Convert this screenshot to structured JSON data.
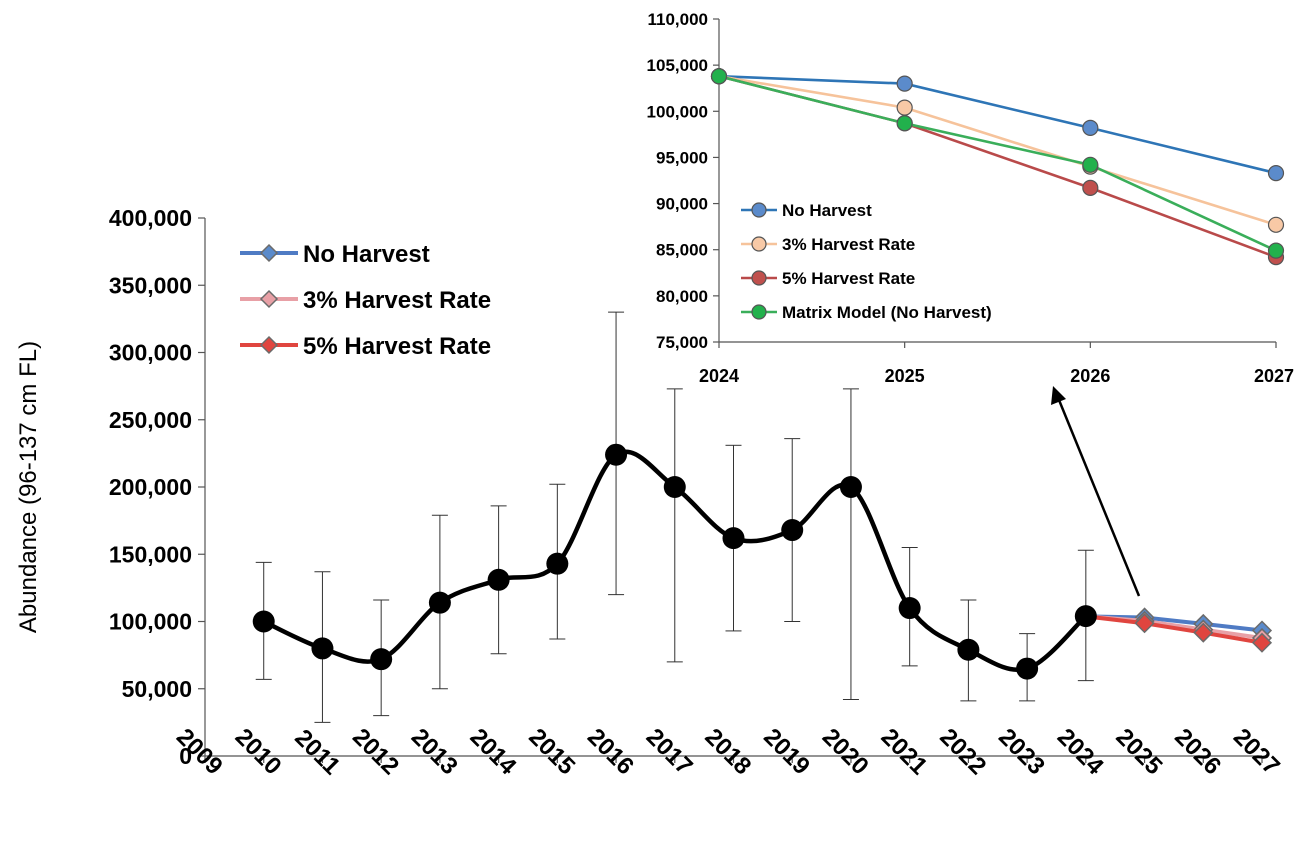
{
  "chart_data": [
    {
      "type": "line",
      "title": "",
      "xlabel": "",
      "ylabel": "Abundance (96-137 cm FL)",
      "ylim": [
        0,
        400000
      ],
      "yticks": [
        0,
        50000,
        100000,
        150000,
        200000,
        250000,
        300000,
        350000,
        400000
      ],
      "ytick_labels": [
        "0",
        "50,000",
        "100,000",
        "150,000",
        "200,000",
        "250,000",
        "300,000",
        "350,000",
        "400,000"
      ],
      "xticks": [
        2009,
        2010,
        2011,
        2012,
        2013,
        2014,
        2015,
        2016,
        2017,
        2018,
        2019,
        2020,
        2021,
        2022,
        2023,
        2024,
        2025,
        2026,
        2027
      ],
      "xtick_labels": [
        "2009",
        "2010",
        "2011",
        "2012",
        "2013",
        "2014",
        "2015",
        "2016",
        "2017",
        "2018",
        "2019",
        "2020",
        "2021",
        "2022",
        "2023",
        "2024",
        "2025",
        "2026",
        "2027"
      ],
      "grid": false,
      "legend_position": "top-left",
      "observed": {
        "x": [
          2010,
          2011,
          2012,
          2013,
          2014,
          2015,
          2016,
          2017,
          2018,
          2019,
          2020,
          2021,
          2022,
          2023,
          2024
        ],
        "y": [
          100000,
          80000,
          72000,
          114000,
          131000,
          143000,
          224000,
          200000,
          162000,
          168000,
          200000,
          110000,
          79000,
          65000,
          104000
        ],
        "err_low": [
          57000,
          25000,
          30000,
          50000,
          76000,
          87000,
          120000,
          70000,
          93000,
          100000,
          42000,
          67000,
          41000,
          41000,
          56000
        ],
        "err_high": [
          144000,
          137000,
          116000,
          179000,
          186000,
          202000,
          330000,
          273000,
          231000,
          236000,
          273000,
          155000,
          116000,
          91000,
          153000
        ],
        "color": "#000000"
      },
      "series": [
        {
          "name": "No Harvest",
          "x": [
            2024,
            2025,
            2026,
            2027
          ],
          "y": [
            103800,
            103000,
            98200,
            93300
          ],
          "color": "#4F7BC4"
        },
        {
          "name": "3% Harvest Rate",
          "x": [
            2024,
            2025,
            2026,
            2027
          ],
          "y": [
            103800,
            100400,
            94000,
            87700
          ],
          "color": "#E8A0A6"
        },
        {
          "name": "5% Harvest Rate",
          "x": [
            2024,
            2025,
            2026,
            2027
          ],
          "y": [
            103800,
            98700,
            91700,
            84200
          ],
          "color": "#E0453F"
        }
      ]
    },
    {
      "type": "line",
      "title": "",
      "xlabel": "",
      "ylabel": "",
      "ylim": [
        75000,
        110000
      ],
      "yticks": [
        75000,
        80000,
        85000,
        90000,
        95000,
        100000,
        105000,
        110000
      ],
      "ytick_labels": [
        "75,000",
        "80,000",
        "85,000",
        "90,000",
        "95,000",
        "100,000",
        "105,000",
        "110,000"
      ],
      "xticks": [
        2024,
        2025,
        2026,
        2027
      ],
      "xtick_labels": [
        "2024",
        "2025",
        "2026",
        "2027"
      ],
      "grid": false,
      "legend_position": "bottom-left",
      "series": [
        {
          "name": "No Harvest",
          "x": [
            2024,
            2025,
            2026,
            2027
          ],
          "y": [
            103800,
            103000,
            98200,
            93300
          ],
          "color": "#2E75B6",
          "marker_fill": "#5B8BCB"
        },
        {
          "name": "3% Harvest Rate",
          "x": [
            2024,
            2025,
            2026,
            2027
          ],
          "y": [
            103800,
            100400,
            94000,
            87700
          ],
          "color": "#F6C39B",
          "marker_fill": "#F8C9A6"
        },
        {
          "name": "5% Harvest Rate",
          "x": [
            2024,
            2025,
            2026,
            2027
          ],
          "y": [
            103800,
            98700,
            91700,
            84200
          ],
          "color": "#B94A4A",
          "marker_fill": "#C0504D"
        },
        {
          "name": "Matrix Model (No Harvest)",
          "x": [
            2024,
            2025,
            2026,
            2027
          ],
          "y": [
            103800,
            98700,
            94200,
            84900
          ],
          "color": "#3AAE5A",
          "marker_fill": "#22B14C"
        }
      ]
    }
  ]
}
